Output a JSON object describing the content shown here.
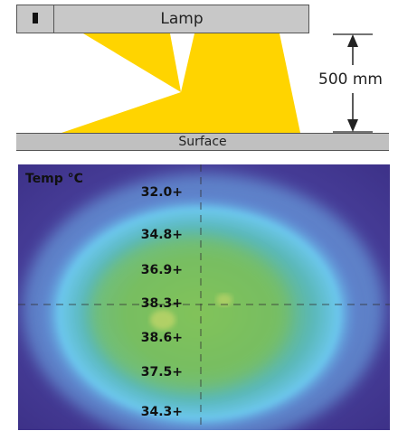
{
  "lamp": {
    "label": "Lamp"
  },
  "distance": {
    "label": "500 mm"
  },
  "surface": {
    "label": "Surface"
  },
  "thermal": {
    "title": "Temp °C",
    "readings": [
      "32.0+",
      "34.8+",
      "36.9+",
      "38.3+",
      "38.6+",
      "37.5+",
      "34.3+"
    ]
  },
  "colors": {
    "light": "#ffd400",
    "housing": "#c8c8c8",
    "surface": "#c0c0c0",
    "thermal_bg": "#4a3d9a",
    "thermal_mid": "#5aa8e0",
    "thermal_core": "#7fc25a"
  }
}
